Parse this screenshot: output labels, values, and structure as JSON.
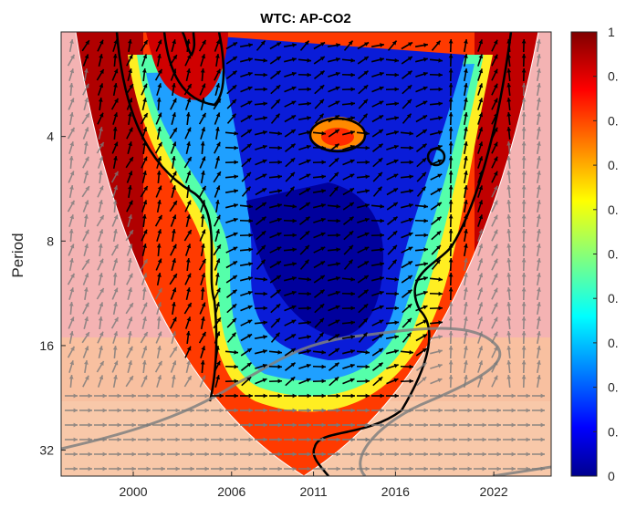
{
  "chart_data": {
    "type": "heatmap",
    "title": "WTC: AP-CO2",
    "ylabel": "Period",
    "xlabel": "",
    "x_ticks": [
      "2000",
      "2006",
      "2011",
      "2016",
      "2022"
    ],
    "x_tick_values": [
      2000,
      2006,
      2011,
      2016,
      2022
    ],
    "xlim": [
      1995.6,
      2025.5
    ],
    "y_ticks": [
      "4",
      "8",
      "16",
      "32"
    ],
    "y_tick_values": [
      4,
      8,
      16,
      32
    ],
    "ylim": [
      2,
      38
    ],
    "y_scale": "log2",
    "colorbar": {
      "range": [
        0,
        1
      ],
      "ticks": [
        "0",
        "0.",
        "0.",
        "0.",
        "0.",
        "0.",
        "0.",
        "0.",
        "0.",
        "0.",
        "1"
      ],
      "colormap": "jet"
    },
    "cone_of_influence": true,
    "phase_arrows": true,
    "significance_contours": true,
    "colors": {
      "shade": "#f4b3b3",
      "arrow": "#000000",
      "arrow_shaded": "#808080"
    }
  }
}
